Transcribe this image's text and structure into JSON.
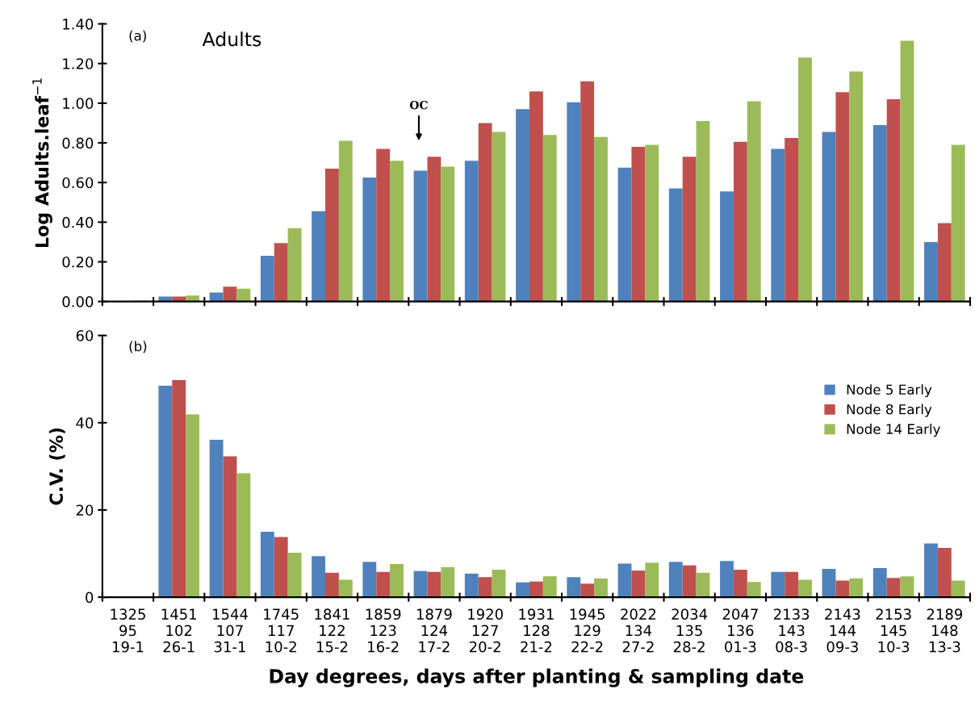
{
  "chart_data": [
    {
      "type": "bar",
      "ylabel": "Log Adults.leaf$^{−1}$",
      "annotations": [
        "(a)",
        "Adults",
        "OC"
      ],
      "categories": [
        null,
        null,
        null,
        null,
        null,
        null,
        null,
        null,
        null,
        null,
        null,
        null,
        null,
        null,
        null,
        null,
        null
      ],
      "series": [
        {
          "color": "#4f81bd",
          "values": [
            0,
            0.025,
            0.045,
            0.23,
            0.455,
            0.625,
            0.66,
            0.71,
            0.97,
            1.005,
            0.675,
            0.57,
            0.555,
            0.77,
            0.855,
            0.89,
            0.3
          ]
        },
        {
          "color": "#c0504d",
          "values": [
            0,
            0.025,
            0.075,
            0.295,
            0.67,
            0.77,
            0.73,
            0.9,
            1.06,
            1.11,
            0.78,
            0.73,
            0.805,
            0.825,
            1.055,
            1.02,
            0.395
          ]
        },
        {
          "color": "#9bbb59",
          "values": [
            0.005,
            0.03,
            0.065,
            0.37,
            0.81,
            0.71,
            0.68,
            0.855,
            0.84,
            0.83,
            0.79,
            0.91,
            1.01,
            1.23,
            1.16,
            1.315,
            0.79
          ]
        }
      ],
      "ylim": [
        0,
        1.4
      ],
      "yticks": [
        {
          "value": 0,
          "label": "0.00"
        },
        {
          "value": 0.2,
          "label": "0.20"
        },
        {
          "value": 0.4,
          "label": "0.40"
        },
        {
          "value": 0.6,
          "label": "0.60"
        },
        {
          "value": 0.8,
          "label": "0.80"
        },
        {
          "value": 1.0,
          "label": "1.00"
        },
        {
          "value": 1.2,
          "label": "1.20"
        },
        {
          "value": 1.4,
          "label": "1.40"
        }
      ],
      "tick_labels": "y",
      "grid": false
    },
    {
      "type": "bar",
      "ylabel": "C.V. (%)",
      "xlabel": "Day degrees, days after planting & sampling date",
      "annotations": [
        "(b)"
      ],
      "categories": [
        "1325\n95\n19-1",
        "1451\n102\n26-1",
        "1544\n107\n31-1",
        "1745\n117\n10-2",
        "1841\n122\n15-2",
        "1859\n123\n16-2",
        "1879\n124\n17-2",
        "1920\n127\n20-2",
        "1931\n128\n21-2",
        "1945\n129\n22-2",
        "2022\n134\n27-2",
        "2034\n135\n28-2",
        "2047\n136\n01-3",
        "2133\n143\n08-3",
        "2143\n144\n09-3",
        "2153\n145\n10-3",
        "2189\n148\n13-3"
      ],
      "series": [
        {
          "name": "Node 5 Early",
          "color": "#4f81bd",
          "values": [
            null,
            48.5,
            36.1,
            15,
            9.4,
            8.1,
            6,
            5.4,
            3.4,
            4.6,
            7.7,
            8.1,
            8.3,
            5.8,
            6.5,
            6.7,
            12.3
          ]
        },
        {
          "name": "Node 8 Early",
          "color": "#c0504d",
          "values": [
            null,
            49.8,
            32.3,
            13.8,
            5.6,
            5.8,
            5.8,
            4.6,
            3.6,
            3.1,
            6.1,
            7.3,
            6.3,
            5.8,
            3.8,
            4.4,
            11.3
          ]
        },
        {
          "name": "Node 14 Early",
          "color": "#9bbb59",
          "values": [
            null,
            41.9,
            28.4,
            10.2,
            4.0,
            7.6,
            6.9,
            6.3,
            4.8,
            4.3,
            7.9,
            5.6,
            3.5,
            4.0,
            4.3,
            4.8,
            3.8
          ]
        }
      ],
      "ylim": [
        0,
        60
      ],
      "yticks": [
        0,
        20,
        40,
        60
      ],
      "grid": false,
      "legend": "top right"
    }
  ]
}
